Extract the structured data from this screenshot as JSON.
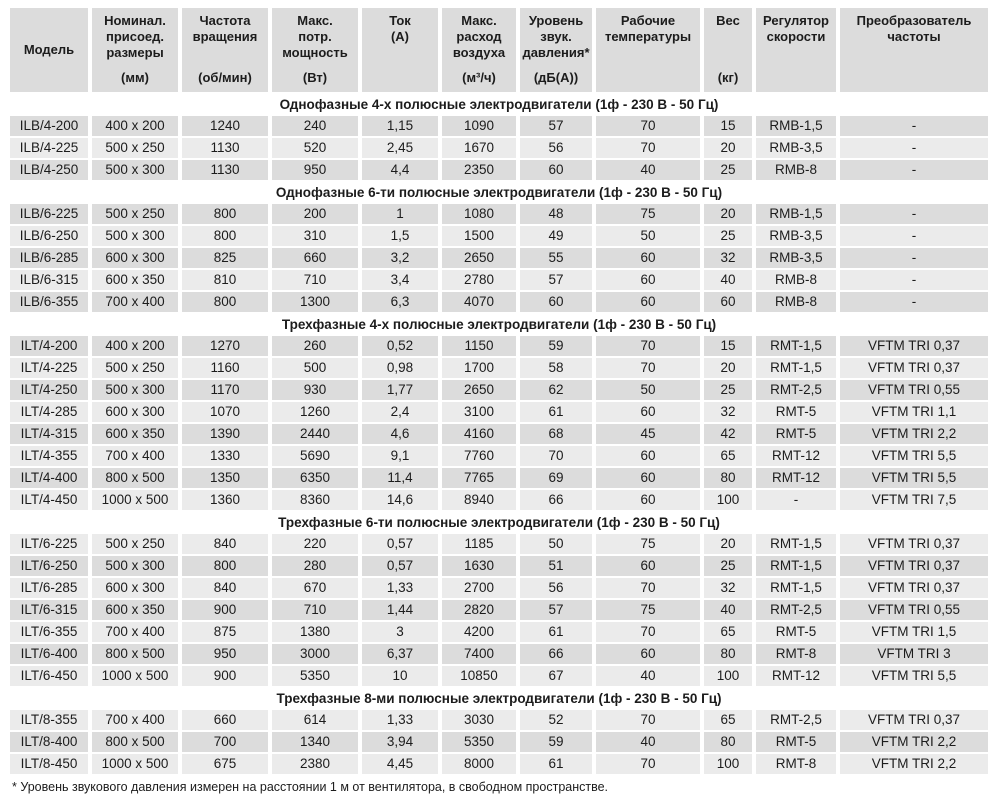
{
  "header": {
    "columns": [
      {
        "lines": [
          "Модель"
        ],
        "valign": "center"
      },
      {
        "lines": [
          "Номинал.",
          "присоед.",
          "размеры"
        ],
        "unit": "(мм)"
      },
      {
        "lines": [
          "Частота",
          "вращения"
        ],
        "unit": "(об/мин)"
      },
      {
        "lines": [
          "Макс.",
          "потр.",
          "мощность"
        ],
        "unit": "(Вт)"
      },
      {
        "lines": [
          "Ток",
          "(А)"
        ]
      },
      {
        "lines": [
          "Макс.",
          "расход",
          "воздуха"
        ],
        "unit": "(м³/ч)"
      },
      {
        "lines": [
          "Уровень",
          "звук.",
          "давления*"
        ],
        "unit": "(дБ(А))"
      },
      {
        "lines": [
          "Рабочие",
          "температуры"
        ]
      },
      {
        "lines": [
          "Вес"
        ],
        "unit": "(кг)"
      },
      {
        "lines": [
          "Регулятор",
          "скорости"
        ]
      },
      {
        "lines": [
          "Преобразователь",
          "частоты"
        ]
      }
    ]
  },
  "sections": [
    {
      "title": "Однофазные 4-х полюсные электродвигатели (1ф - 230 В - 50 Гц)",
      "rows": [
        [
          "ILB/4-200",
          "400 x 200",
          "1240",
          "240",
          "1,15",
          "1090",
          "57",
          "70",
          "15",
          "RMB-1,5",
          "-"
        ],
        [
          "ILB/4-225",
          "500 x 250",
          "1130",
          "520",
          "2,45",
          "1670",
          "56",
          "70",
          "20",
          "RMB-3,5",
          "-"
        ],
        [
          "ILB/4-250",
          "500 x 300",
          "1130",
          "950",
          "4,4",
          "2350",
          "60",
          "40",
          "25",
          "RMB-8",
          "-"
        ]
      ]
    },
    {
      "title": "Однофазные 6-ти полюсные электродвигатели (1ф - 230 В - 50 Гц)",
      "rows": [
        [
          "ILB/6-225",
          "500 x 250",
          "800",
          "200",
          "1",
          "1080",
          "48",
          "75",
          "20",
          "RMB-1,5",
          "-"
        ],
        [
          "ILB/6-250",
          "500 x 300",
          "800",
          "310",
          "1,5",
          "1500",
          "49",
          "50",
          "25",
          "RMB-3,5",
          "-"
        ],
        [
          "ILB/6-285",
          "600 x 300",
          "825",
          "660",
          "3,2",
          "2650",
          "55",
          "60",
          "32",
          "RMB-3,5",
          "-"
        ],
        [
          "ILB/6-315",
          "600 x 350",
          "810",
          "710",
          "3,4",
          "2780",
          "57",
          "60",
          "40",
          "RMB-8",
          "-"
        ],
        [
          "ILB/6-355",
          "700 x 400",
          "800",
          "1300",
          "6,3",
          "4070",
          "60",
          "60",
          "60",
          "RMB-8",
          "-"
        ]
      ]
    },
    {
      "title": "Трехфазные 4-х полюсные электродвигатели (1ф - 230 В - 50 Гц)",
      "rows": [
        [
          "ILT/4-200",
          "400 x 200",
          "1270",
          "260",
          "0,52",
          "1150",
          "59",
          "70",
          "15",
          "RMT-1,5",
          "VFTM TRI 0,37"
        ],
        [
          "ILT/4-225",
          "500 x 250",
          "1160",
          "500",
          "0,98",
          "1700",
          "58",
          "70",
          "20",
          "RMT-1,5",
          "VFTM TRI 0,37"
        ],
        [
          "ILT/4-250",
          "500 x 300",
          "1170",
          "930",
          "1,77",
          "2650",
          "62",
          "50",
          "25",
          "RMT-2,5",
          "VFTM TRI 0,55"
        ],
        [
          "ILT/4-285",
          "600 x 300",
          "1070",
          "1260",
          "2,4",
          "3100",
          "61",
          "60",
          "32",
          "RMT-5",
          "VFTM TRI 1,1"
        ],
        [
          "ILT/4-315",
          "600 x 350",
          "1390",
          "2440",
          "4,6",
          "4160",
          "68",
          "45",
          "42",
          "RMT-5",
          "VFTM TRI 2,2"
        ],
        [
          "ILT/4-355",
          "700 x 400",
          "1330",
          "5690",
          "9,1",
          "7760",
          "70",
          "60",
          "65",
          "RMT-12",
          "VFTM TRI 5,5"
        ],
        [
          "ILT/4-400",
          "800 x 500",
          "1350",
          "6350",
          "11,4",
          "7765",
          "69",
          "60",
          "80",
          "RMT-12",
          "VFTM TRI 5,5"
        ],
        [
          "ILT/4-450",
          "1000 x 500",
          "1360",
          "8360",
          "14,6",
          "8940",
          "66",
          "60",
          "100",
          "-",
          "VFTM TRI 7,5"
        ]
      ]
    },
    {
      "title": "Трехфазные 6-ти полюсные электродвигатели (1ф - 230 В - 50 Гц)",
      "rows": [
        [
          "ILT/6-225",
          "500 x 250",
          "840",
          "220",
          "0,57",
          "1185",
          "50",
          "75",
          "20",
          "RMT-1,5",
          "VFTM TRI 0,37"
        ],
        [
          "ILT/6-250",
          "500 x 300",
          "800",
          "280",
          "0,57",
          "1630",
          "51",
          "60",
          "25",
          "RMT-1,5",
          "VFTM TRI 0,37"
        ],
        [
          "ILT/6-285",
          "600 x 300",
          "840",
          "670",
          "1,33",
          "2700",
          "56",
          "70",
          "32",
          "RMT-1,5",
          "VFTM TRI 0,37"
        ],
        [
          "ILT/6-315",
          "600 x 350",
          "900",
          "710",
          "1,44",
          "2820",
          "57",
          "75",
          "40",
          "RMT-2,5",
          "VFTM TRI 0,55"
        ],
        [
          "ILT/6-355",
          "700 x 400",
          "875",
          "1380",
          "3",
          "4200",
          "61",
          "70",
          "65",
          "RMT-5",
          "VFTM TRI 1,5"
        ],
        [
          "ILT/6-400",
          "800 x 500",
          "950",
          "3000",
          "6,37",
          "7400",
          "66",
          "60",
          "80",
          "RMT-8",
          "VFTM TRI 3"
        ],
        [
          "ILT/6-450",
          "1000 x 500",
          "900",
          "5350",
          "10",
          "10850",
          "67",
          "40",
          "100",
          "RMT-12",
          "VFTM TRI 5,5"
        ]
      ]
    },
    {
      "title": "Трехфазные 8-ми полюсные электродвигатели (1ф - 230 В - 50 Гц)",
      "rows": [
        [
          "ILT/8-355",
          "700 x 400",
          "660",
          "614",
          "1,33",
          "3030",
          "52",
          "70",
          "65",
          "RMT-2,5",
          "VFTM TRI 0,37"
        ],
        [
          "ILT/8-400",
          "800 x 500",
          "700",
          "1340",
          "3,94",
          "5350",
          "59",
          "40",
          "80",
          "RMT-5",
          "VFTM TRI 2,2"
        ],
        [
          "ILT/8-450",
          "1000 x 500",
          "675",
          "2380",
          "4,45",
          "8000",
          "61",
          "70",
          "100",
          "RMT-8",
          "VFTM TRI 2,2"
        ]
      ]
    }
  ],
  "footnote": "* Уровень звукового давления измерен на расстоянии 1 м от вентилятора, в свободном пространстве.",
  "colors": {
    "row_dark": "#dcdcdc",
    "row_light": "#ebebeb",
    "header_bg": "#dcdcdc",
    "text": "#1c1c1c",
    "background": "#ffffff"
  }
}
